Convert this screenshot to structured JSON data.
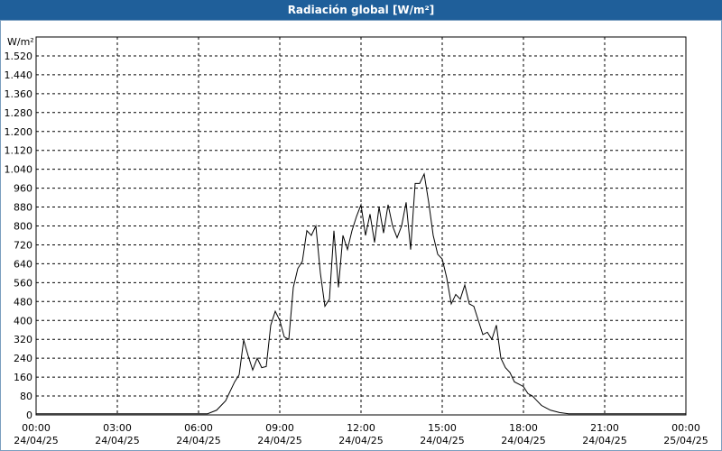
{
  "chart_data": {
    "type": "line",
    "title": "Radiación global [W/m²]",
    "ylabel": "W/m²",
    "x": [
      0,
      180,
      360,
      380,
      400,
      420,
      430,
      440,
      450,
      460,
      470,
      480,
      490,
      500,
      510,
      520,
      530,
      540,
      550,
      560,
      570,
      580,
      590,
      600,
      610,
      620,
      630,
      640,
      650,
      660,
      670,
      680,
      690,
      700,
      710,
      720,
      730,
      740,
      750,
      760,
      770,
      780,
      790,
      800,
      810,
      820,
      830,
      840,
      850,
      860,
      870,
      880,
      890,
      900,
      910,
      920,
      930,
      940,
      950,
      960,
      970,
      980,
      990,
      1000,
      1010,
      1020,
      1030,
      1040,
      1050,
      1060,
      1070,
      1080,
      1090,
      1100,
      1110,
      1120,
      1130,
      1140,
      1160,
      1180,
      1200,
      1320,
      1440
    ],
    "series": [
      {
        "name": "Radiación global",
        "color": "#000000",
        "values": [
          5,
          5,
          5,
          5,
          20,
          60,
          100,
          140,
          170,
          317,
          250,
          190,
          240,
          200,
          205,
          380,
          439,
          400,
          330,
          320,
          540,
          620,
          650,
          780,
          760,
          800,
          600,
          460,
          490,
          780,
          540,
          760,
          700,
          780,
          840,
          890,
          760,
          850,
          730,
          880,
          770,
          890,
          800,
          750,
          800,
          900,
          700,
          980,
          980,
          1020,
          900,
          760,
          680,
          660,
          580,
          470,
          510,
          490,
          550,
          470,
          460,
          400,
          340,
          350,
          320,
          380,
          240,
          200,
          180,
          140,
          130,
          120,
          90,
          80,
          60,
          40,
          30,
          20,
          10,
          5,
          5,
          5,
          5
        ]
      }
    ],
    "xlim": [
      0,
      1440
    ],
    "xticks": [
      {
        "value": 0,
        "label": "00:00\n24/04/25"
      },
      {
        "value": 180,
        "label": "03:00\n24/04/25"
      },
      {
        "value": 360,
        "label": "06:00\n24/04/25"
      },
      {
        "value": 540,
        "label": "09:00\n24/04/25"
      },
      {
        "value": 720,
        "label": "12:00\n24/04/25"
      },
      {
        "value": 900,
        "label": "15:00\n24/04/25"
      },
      {
        "value": 1080,
        "label": "18:00\n24/04/25"
      },
      {
        "value": 1260,
        "label": "21:00\n24/04/25"
      },
      {
        "value": 1440,
        "label": "00:00\n25/04/25"
      }
    ],
    "ylim": [
      0,
      1600
    ],
    "yticks": [
      0,
      80,
      160,
      240,
      320,
      400,
      480,
      560,
      640,
      720,
      800,
      880,
      960,
      {
        "value": 1040,
        "label": "1.040"
      },
      {
        "value": 1120,
        "label": "1.120"
      },
      {
        "value": 1200,
        "label": "1.200"
      },
      {
        "value": 1280,
        "label": "1.280"
      },
      {
        "value": 1360,
        "label": "1.360"
      },
      {
        "value": 1440,
        "label": "1.440"
      },
      {
        "value": 1520,
        "label": "1.520"
      }
    ],
    "grid": true
  }
}
